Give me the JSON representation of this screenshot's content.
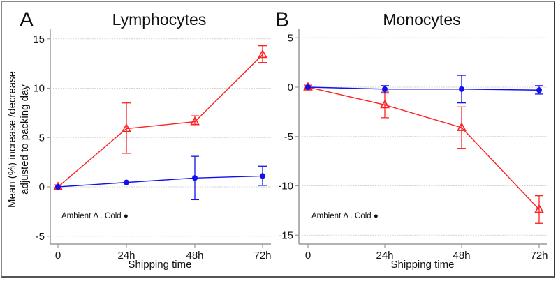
{
  "colors": {
    "ambient": "#ff2020",
    "cold": "#1010ee",
    "axis": "#999999",
    "grid": "#d4d4d4"
  },
  "chart_data": [
    {
      "type": "line",
      "panel_label": "A",
      "title": "Lymphocytes",
      "xlabel": "Shipping time",
      "ylabel": "Mean (%) increase /decrease adjusted to packing day",
      "categories": [
        "0",
        "24h",
        "48h",
        "72h"
      ],
      "ylim": [
        -6,
        16
      ],
      "yticks": [
        -5,
        0,
        5,
        10,
        15
      ],
      "grid": true,
      "legend_text": "Ambient Δ . Cold ●",
      "legend_placement": "bottom-left",
      "series": [
        {
          "name": "Ambient",
          "marker": "triangle",
          "values": [
            0,
            5.9,
            6.6,
            13.4
          ],
          "err_low": [
            -0.2,
            3.4,
            6.3,
            12.6
          ],
          "err_high": [
            0.2,
            8.5,
            7.2,
            14.3
          ]
        },
        {
          "name": "Cold",
          "marker": "circle",
          "values": [
            0,
            0.45,
            0.9,
            1.1
          ],
          "err_low": [
            -0.1,
            0.35,
            -1.3,
            0.15
          ],
          "err_high": [
            0.1,
            0.55,
            3.1,
            2.1
          ]
        }
      ]
    },
    {
      "type": "line",
      "panel_label": "B",
      "title": "Monocytes",
      "xlabel": "Shipping time",
      "ylabel": "",
      "categories": [
        "0",
        "24h",
        "48h",
        "72h"
      ],
      "ylim": [
        -16,
        6
      ],
      "yticks": [
        -15,
        -10,
        -5,
        0,
        5
      ],
      "grid": true,
      "legend_text": "Ambient Δ . Cold ●",
      "legend_placement": "bottom-left",
      "series": [
        {
          "name": "Ambient",
          "marker": "triangle",
          "values": [
            0,
            -1.8,
            -4.1,
            -12.4
          ],
          "err_low": [
            -0.2,
            -3.1,
            -6.2,
            -13.8
          ],
          "err_high": [
            0.2,
            -0.5,
            -2.0,
            -11.0
          ]
        },
        {
          "name": "Cold",
          "marker": "circle",
          "values": [
            0,
            -0.2,
            -0.2,
            -0.3
          ],
          "err_low": [
            -0.1,
            -0.6,
            -1.6,
            -0.7
          ],
          "err_high": [
            0.1,
            0.15,
            1.2,
            0.15
          ]
        }
      ]
    }
  ]
}
